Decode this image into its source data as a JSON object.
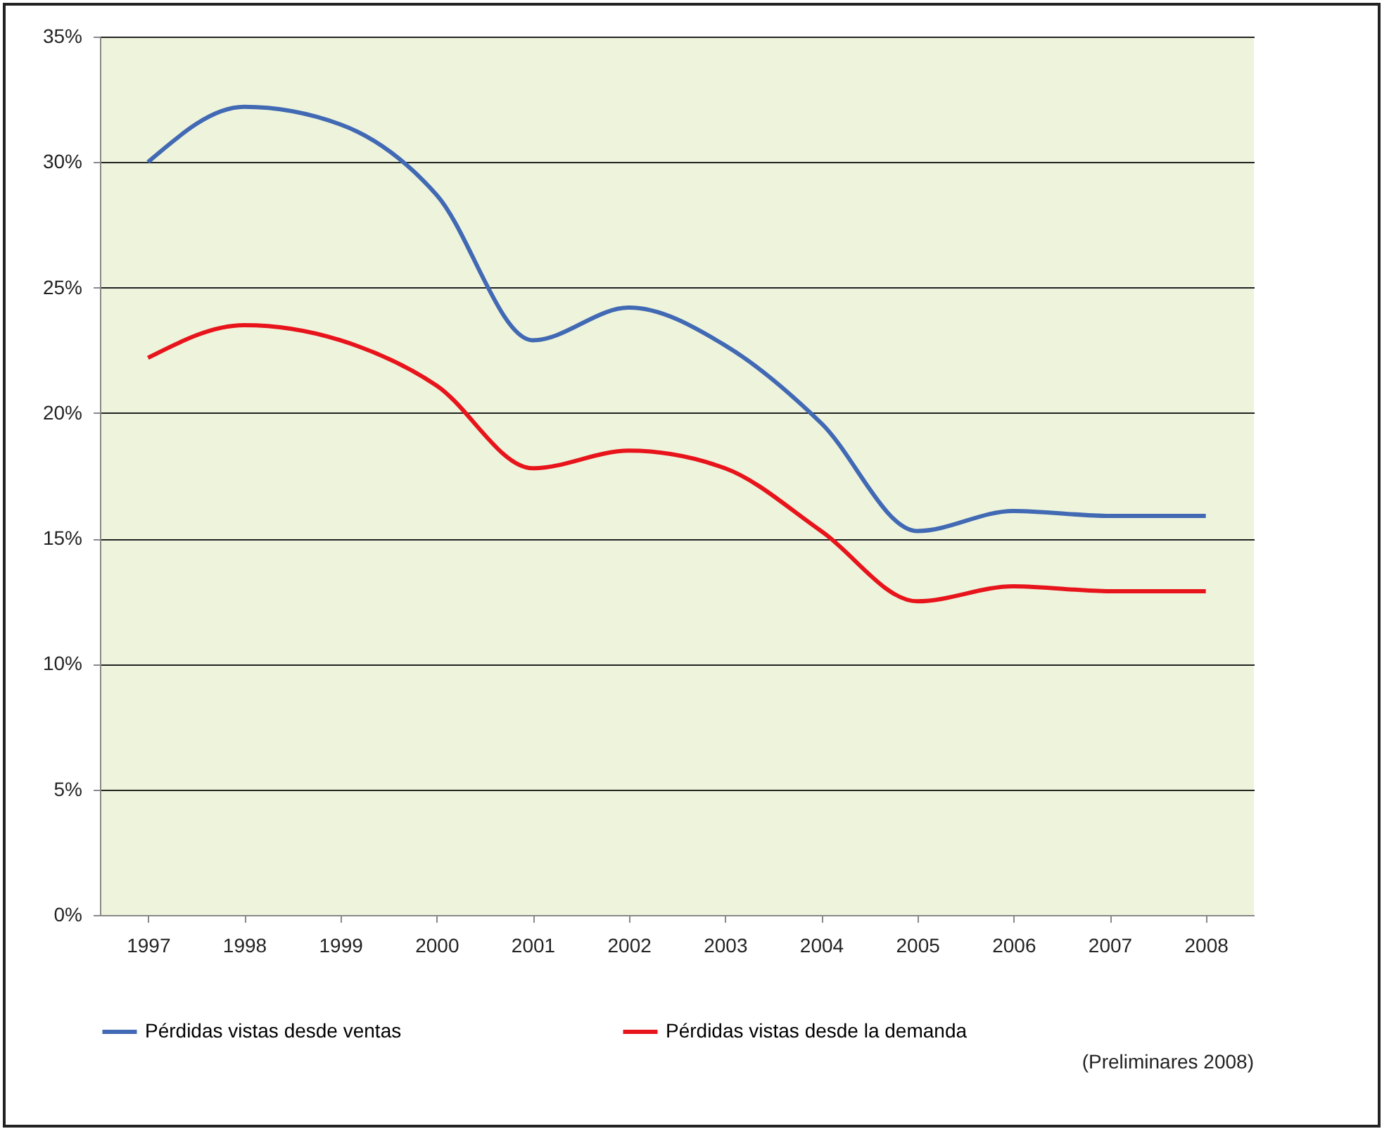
{
  "chart_data": {
    "type": "line",
    "categories": [
      "1997",
      "1998",
      "1999",
      "2000",
      "2001",
      "2002",
      "2003",
      "2004",
      "2005",
      "2006",
      "2007",
      "2008"
    ],
    "series": [
      {
        "name": "Pérdidas vistas desde ventas",
        "color": "#4169b4",
        "values": [
          30.0,
          32.2,
          31.5,
          28.7,
          22.9,
          24.2,
          22.7,
          19.6,
          15.3,
          16.1,
          15.9,
          15.9
        ]
      },
      {
        "name": "Pérdidas vistas desde la demanda",
        "color": "#e8141c",
        "values": [
          22.2,
          23.5,
          22.9,
          21.1,
          17.8,
          18.5,
          17.8,
          15.3,
          12.5,
          13.1,
          12.9,
          12.9
        ]
      }
    ],
    "ylim": [
      0,
      35
    ],
    "yticks": [
      {
        "value": 0,
        "label": "0%"
      },
      {
        "value": 5,
        "label": "5%"
      },
      {
        "value": 10,
        "label": "10%"
      },
      {
        "value": 15,
        "label": "15%"
      },
      {
        "value": 20,
        "label": "20%"
      },
      {
        "value": 25,
        "label": "25%"
      },
      {
        "value": 30,
        "label": "30%"
      },
      {
        "value": 35,
        "label": "35%"
      }
    ],
    "grid": "y",
    "legend": "bottom",
    "marker": "none",
    "line_style": "solid",
    "annotations": [
      "(Preliminares 2008)"
    ]
  }
}
